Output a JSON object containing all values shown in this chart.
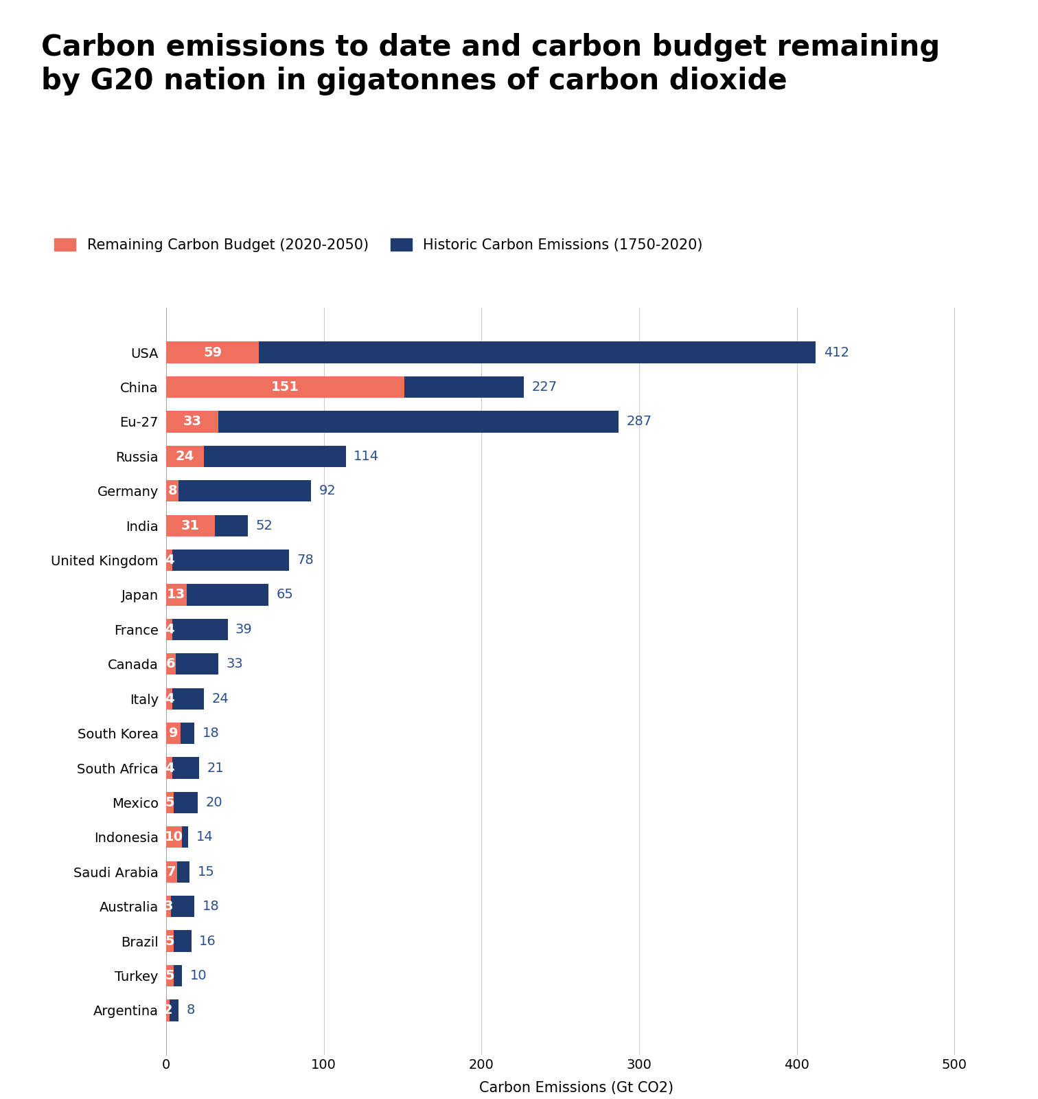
{
  "title": "Carbon emissions to date and carbon budget remaining\nby G20 nation in gigatonnes of carbon dioxide",
  "xlabel": "Carbon Emissions (Gt CO2)",
  "legend_budget": "Remaining Carbon Budget (2020-2050)",
  "legend_historic": "Historic Carbon Emissions (1750-2020)",
  "color_budget": "#F07060",
  "color_historic": "#1F3A6E",
  "color_label_inside": "#FFFFFF",
  "color_label_outside": "#2B4E8C",
  "background_color": "#FFFFFF",
  "grid_color": "#CCCCCC",
  "nations": [
    "USA",
    "China",
    "Eu-27",
    "Russia",
    "Germany",
    "India",
    "United Kingdom",
    "Japan",
    "France",
    "Canada",
    "Italy",
    "South Korea",
    "South Africa",
    "Mexico",
    "Indonesia",
    "Saudi Arabia",
    "Australia",
    "Brazil",
    "Turkey",
    "Argentina"
  ],
  "budget": [
    59,
    151,
    33,
    24,
    8,
    31,
    4,
    13,
    4,
    6,
    4,
    9,
    4,
    5,
    10,
    7,
    3,
    5,
    5,
    2
  ],
  "historic": [
    412,
    227,
    287,
    114,
    92,
    52,
    78,
    65,
    39,
    33,
    24,
    18,
    21,
    20,
    14,
    15,
    18,
    16,
    10,
    8
  ],
  "xlim": [
    0,
    520
  ],
  "title_fontsize": 30,
  "label_fontsize": 15,
  "tick_fontsize": 14,
  "legend_fontsize": 15,
  "bar_height": 0.62,
  "xticks": [
    0,
    100,
    200,
    300,
    400,
    500
  ],
  "inside_label_fontsize": 14,
  "outside_label_fontsize": 14
}
